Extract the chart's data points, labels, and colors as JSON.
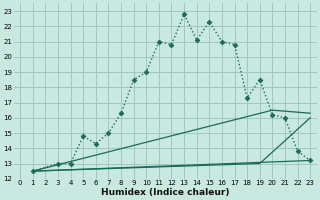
{
  "xlabel": "Humidex (Indice chaleur)",
  "bg_color": "#c8e8e0",
  "grid_color": "#a0c8c0",
  "line_color": "#1a6b5a",
  "xlim": [
    -0.5,
    23.5
  ],
  "ylim": [
    12,
    23.5
  ],
  "xticks": [
    0,
    1,
    2,
    3,
    4,
    5,
    6,
    7,
    8,
    9,
    10,
    11,
    12,
    13,
    14,
    15,
    16,
    17,
    18,
    19,
    20,
    21,
    22,
    23
  ],
  "yticks": [
    12,
    13,
    14,
    15,
    16,
    17,
    18,
    19,
    20,
    21,
    22,
    23
  ],
  "curve1_x": [
    1,
    3,
    4,
    5,
    6,
    7,
    8,
    9,
    10,
    11,
    12,
    13,
    14,
    15,
    16,
    17,
    18,
    19,
    20,
    21,
    22,
    23
  ],
  "curve1_y": [
    12.5,
    13.0,
    13.0,
    14.8,
    14.3,
    15.0,
    16.3,
    18.5,
    19.0,
    21.0,
    20.8,
    22.8,
    21.1,
    22.3,
    21.0,
    20.8,
    17.3,
    18.5,
    16.2,
    16.0,
    13.8,
    13.2
  ],
  "line2_x": [
    1,
    20,
    23
  ],
  "line2_y": [
    12.5,
    16.5,
    16.3
  ],
  "line3_x": [
    1,
    19,
    23
  ],
  "line3_y": [
    12.5,
    13.0,
    16.0
  ],
  "line4_x": [
    1,
    23
  ],
  "line4_y": [
    12.5,
    13.2
  ]
}
